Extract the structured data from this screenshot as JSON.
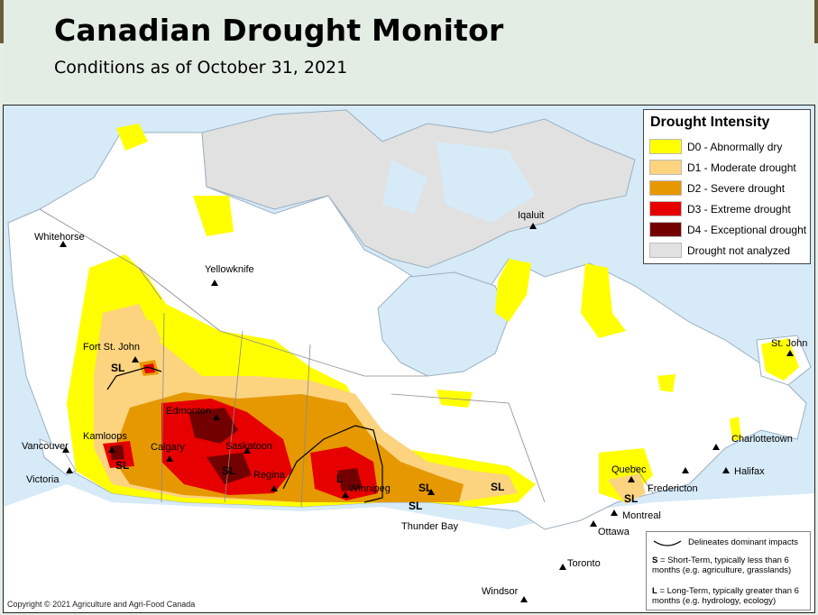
{
  "header": {
    "title": "Canadian Drought Monitor",
    "subtitle": "Conditions as of October 31, 2021"
  },
  "legend": {
    "title": "Drought Intensity",
    "items": [
      {
        "label": "D0 - Abnormally dry",
        "color": "#ffff00"
      },
      {
        "label": "D1 - Moderate drought",
        "color": "#fcd37f"
      },
      {
        "label": "D2 - Severe drought",
        "color": "#e69800"
      },
      {
        "label": "D3 - Extreme drought",
        "color": "#e60000"
      },
      {
        "label": "D4 - Exceptional drought",
        "color": "#730000"
      },
      {
        "label": "Drought not analyzed",
        "color": "#e1e1e1"
      }
    ]
  },
  "notes": {
    "line_label": "Delineates dominant impacts",
    "short_term": "= Short-Term, typically less than 6 months (e.g. agriculture, grasslands)",
    "short_term_key": "S",
    "long_term": "= Long-Term, typically greater  than 6 months (e.g. hydrology, ecology)",
    "long_term_key": "L"
  },
  "copyright": "Copyright © 2021 Agriculture and Agri-Food Canada",
  "cities": {
    "whitehorse": "Whitehorse",
    "yellowknife": "Yellowknife",
    "iqaluit": "Iqaluit",
    "fort_st_john": "Fort St. John",
    "edmonton": "Edmonton",
    "kamloops": "Kamloops",
    "calgary": "Calgary",
    "saskatoon": "Saskatoon",
    "regina": "Regina",
    "vancouver": "Vancouver",
    "victoria": "Victoria",
    "winnipeg": "Winnipeg",
    "thunder_bay": "Thunder Bay",
    "quebec": "Quebec",
    "montreal": "Montreal",
    "ottawa": "Ottawa",
    "toronto": "Toronto",
    "windsor": "Windsor",
    "fredericton": "Fredericton",
    "charlottetown": "Charlottetown",
    "halifax": "Halifax",
    "st_john": "St. John"
  },
  "impact_labels": {
    "sl_bc_north": "SL",
    "sl_kamloops": "SL",
    "sl_saskatoon": "SL",
    "l_manitoba": "L",
    "sl_manitoba": "SL",
    "sl_thunder_bay": "SL",
    "sl_ontario": "SL",
    "sl_quebec": "SL"
  },
  "colors": {
    "water": "#d6eaf8",
    "land": "#ffffff",
    "d0": "#ffff00",
    "d1": "#fcd37f",
    "d2": "#e69800",
    "d3": "#e60000",
    "d4": "#730000",
    "not_analyzed": "#e1e1e1"
  }
}
